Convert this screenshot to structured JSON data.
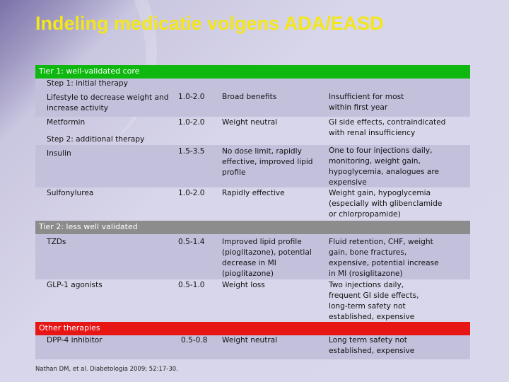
{
  "title": "Indeling medicatie volgens ADA/EASD",
  "colors": {
    "title": "#f3e61a",
    "tier1": "#0fb80f",
    "tier2": "#8c8c8c",
    "other": "#e81515"
  },
  "tier1": {
    "header": "Tier 1: well-validated core",
    "step1": "Step 1: initial therapy",
    "lifestyle": {
      "name": "Lifestyle to decrease weight and increase activity",
      "value": "1.0-2.0",
      "adv": "Broad benefits",
      "disadv": "Insufficient for most within first year"
    },
    "metformin": {
      "name": "Metformin",
      "value": "1.0-2.0",
      "adv": "Weight neutral",
      "disadv": "GI side effects, contraindicated with renal insufficiency"
    },
    "step2": "Step 2: additional therapy",
    "insulin": {
      "name": "Insulin",
      "value": "1.5-3.5",
      "adv": "No dose limit, rapidly effective, improved lipid profile",
      "disadv": "One to four injections daily, monitoring, weight gain, hypoglycemia, analogues are expensive"
    },
    "sulfonylurea": {
      "name": "Sulfonylurea",
      "value": "1.0-2.0",
      "adv": "Rapidly effective",
      "disadv": "Weight gain, hypoglycemia (especially with glibenclamide or chlorpropamide)"
    }
  },
  "tier2": {
    "header": "Tier 2: less well validated",
    "tzds": {
      "name": "TZDs",
      "value": "0.5-1.4",
      "adv": "Improved lipid profile (pioglitazone), potential decrease in MI (pioglitazone)",
      "disadv": "Fluid retention, CHF, weight gain, bone fractures, expensive, potential increase in MI (rosiglitazone)"
    },
    "glp1": {
      "name": "GLP-1 agonists",
      "value": "0.5-1.0",
      "adv": "Weight loss",
      "disadv": "Two injections daily, frequent GI side effects, long-term safety not established, expensive"
    }
  },
  "other": {
    "header": "Other therapies",
    "dpp4": {
      "name": "DPP-4 inhibitor",
      "value": "0.5-0.8",
      "adv": "Weight neutral",
      "disadv": "Long term safety not established, expensive"
    }
  },
  "citation": "Nathan DM, et al. Diabetologia 2009; 52:17-30."
}
